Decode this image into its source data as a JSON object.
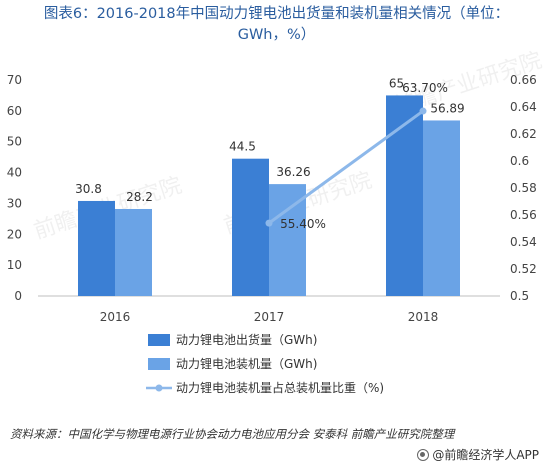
{
  "title": {
    "line1": "图表6：2016-2018年中国动力锂电池出货量和装机量相关情况（单位：",
    "line2": "GWh，%）"
  },
  "chart_data": {
    "type": "bar",
    "categories": [
      "2016",
      "2017",
      "2018"
    ],
    "series": [
      {
        "name": "动力锂电池出货量（GWh)",
        "kind": "bar",
        "axis": "left",
        "values": [
          30.8,
          44.5,
          65
        ],
        "labels": [
          "30.8",
          "44.5",
          "65"
        ],
        "color": "#3b7fd4"
      },
      {
        "name": "动力锂电池装机量（GWh)",
        "kind": "bar",
        "axis": "left",
        "values": [
          28.2,
          36.26,
          56.89
        ],
        "labels": [
          "28.2",
          "36.26",
          "56.89"
        ],
        "color": "#6aa3e6"
      },
      {
        "name": "动力锂电池装机量占总装机量比重（%)",
        "kind": "line",
        "axis": "right",
        "values": [
          null,
          0.554,
          0.637
        ],
        "labels": [
          "",
          "55.40%",
          "63.70%"
        ],
        "color": "#8db8ea"
      }
    ],
    "y_left": {
      "min": 0,
      "max": 70,
      "ticks": [
        "0",
        "10",
        "20",
        "30",
        "40",
        "50",
        "60",
        "70"
      ]
    },
    "y_right": {
      "min": 0.5,
      "max": 0.66,
      "ticks": [
        "0.5",
        "0.52",
        "0.54",
        "0.56",
        "0.58",
        "0.6",
        "0.62",
        "0.64",
        "0.66"
      ]
    },
    "grid": false,
    "legend_position": "bottom"
  },
  "watermark": "前瞻产业研究院",
  "source": "资料来源：中国化学与物理电源行业协会动力电池应用分会 安泰科 前瞻产业研究院整理",
  "brand": "@前瞻经济学人APP"
}
